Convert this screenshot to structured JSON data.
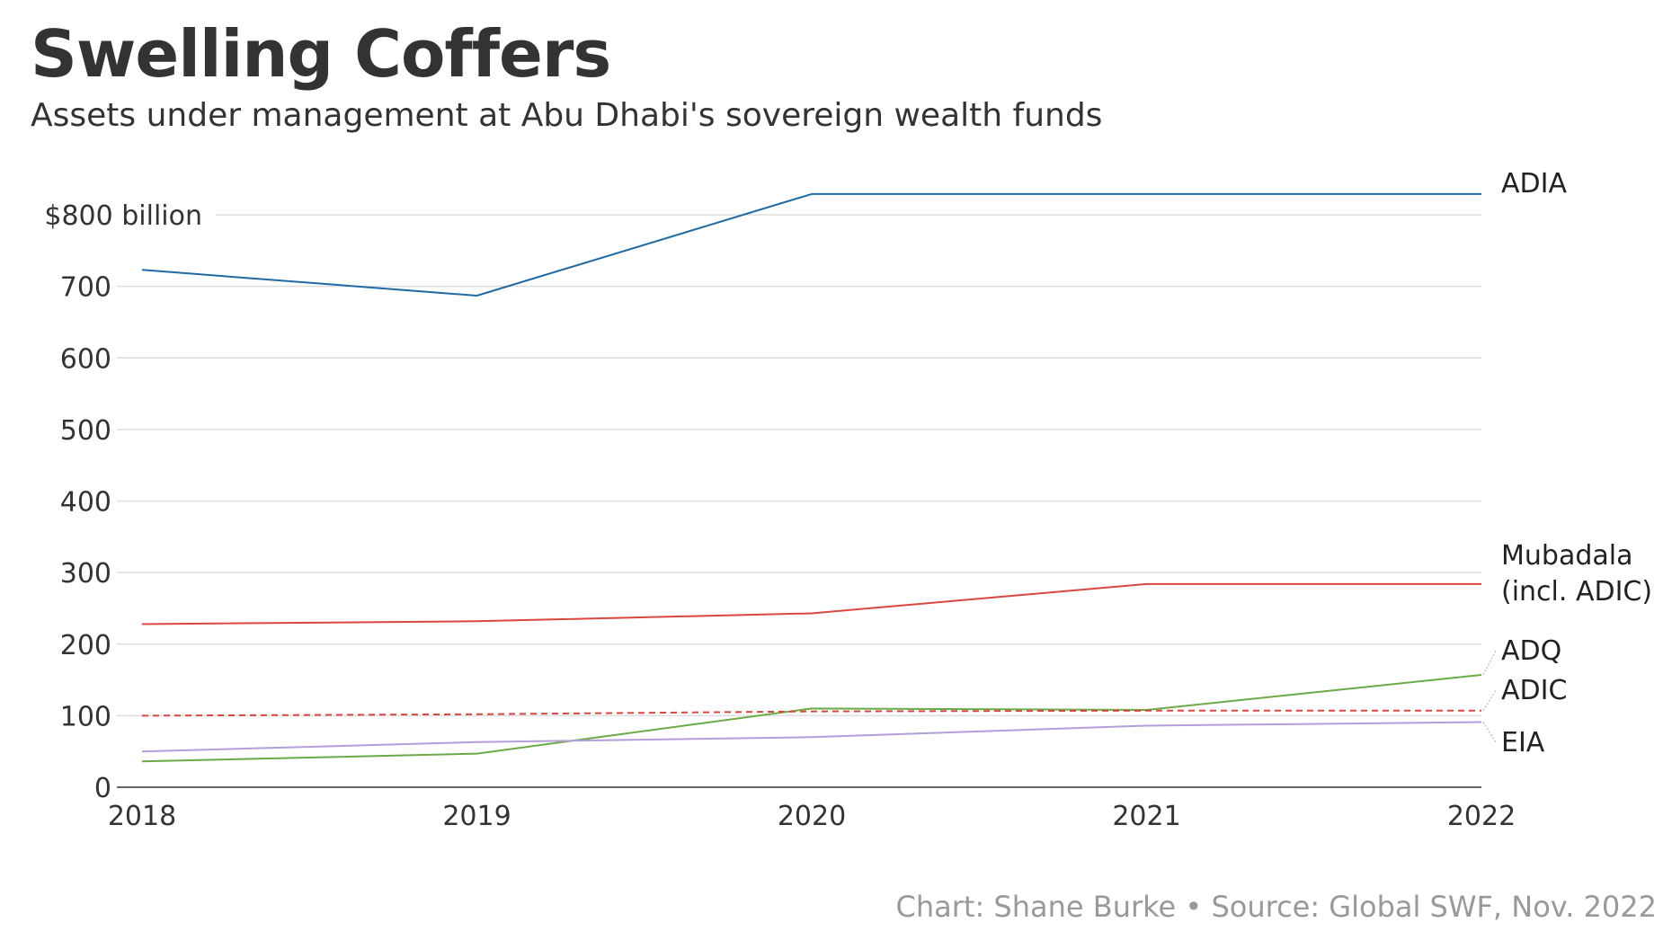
{
  "title": "Swelling Coffers",
  "subtitle": "Assets under management at Abu Dhabi's sovereign wealth funds",
  "footer": "Chart: Shane Burke • Source: Global SWF, Nov. 2022",
  "chart_data": {
    "type": "line",
    "x": [
      "2018",
      "2019",
      "2020",
      "2021",
      "2022"
    ],
    "ylim": [
      0,
      800
    ],
    "yticks": [
      0,
      100,
      200,
      300,
      400,
      500,
      600,
      700,
      800
    ],
    "ytick_labels": [
      "0",
      "100",
      "200",
      "300",
      "400",
      "500",
      "600",
      "700",
      "$800 billion"
    ],
    "grid": true,
    "legend": "direct labels at right end of lines",
    "series": [
      {
        "name": "ADIA",
        "label_lines": [
          "ADIA"
        ],
        "values": [
          723,
          687,
          829,
          829,
          829
        ],
        "color": "#1f6aa5",
        "dashed": false
      },
      {
        "name": "Mubadala (incl. ADIC)",
        "label_lines": [
          "Mubadala",
          "(incl. ADIC)"
        ],
        "values": [
          228,
          232,
          243,
          284,
          284
        ],
        "color": "#d9473f",
        "dashed": false
      },
      {
        "name": "ADQ",
        "label_lines": [
          "ADQ"
        ],
        "values": [
          36,
          47,
          110,
          108,
          157
        ],
        "color": "#6aab45",
        "dashed": false
      },
      {
        "name": "ADIC",
        "label_lines": [
          "ADIC"
        ],
        "values": [
          100,
          102,
          106,
          107,
          107
        ],
        "color": "#d9473f",
        "dashed": true
      },
      {
        "name": "EIA",
        "label_lines": [
          "EIA"
        ],
        "values": [
          50,
          63,
          70,
          86,
          91
        ],
        "color": "#b39ddb",
        "dashed": false
      }
    ]
  }
}
